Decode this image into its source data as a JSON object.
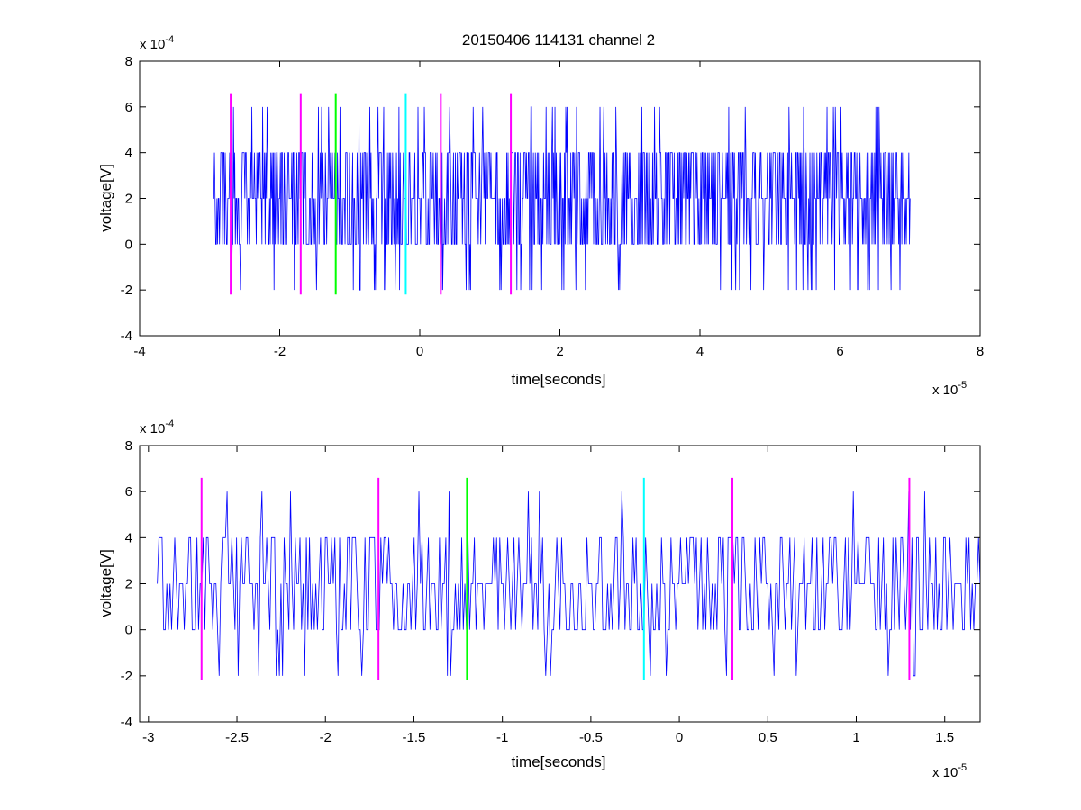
{
  "figure": {
    "title": "20150406 114131 channel 2"
  },
  "chart_data": [
    {
      "type": "line",
      "title": "20150406 114131 channel 2",
      "xlabel": "time[seconds]",
      "ylabel": "voltage[V]",
      "x_multiplier": "x 10",
      "x_exponent": "-5",
      "y_multiplier": "x 10",
      "y_exponent": "-4",
      "xlim": [
        -4,
        8
      ],
      "ylim": [
        -4,
        8
      ],
      "xticks": [
        "-4",
        "-2",
        "0",
        "2",
        "4",
        "6",
        "8"
      ],
      "xtick_values": [
        -4,
        -2,
        0,
        2,
        4,
        6,
        8
      ],
      "yticks": [
        "-4",
        "-2",
        "0",
        "2",
        "4",
        "6",
        "8"
      ],
      "ytick_values": [
        -4,
        -2,
        0,
        2,
        4,
        6,
        8
      ],
      "grid": false,
      "signal": {
        "color": "#0000ff",
        "x_start": -2.95,
        "x_end": 7.0,
        "levels": [
          -2,
          0,
          2,
          4,
          6
        ],
        "baseline": 2,
        "seed": 11,
        "samples": 1100
      },
      "markers": [
        {
          "x": -2.7,
          "color": "#ff00ff",
          "y_min": -2.2,
          "y_max": 6.6
        },
        {
          "x": -1.7,
          "color": "#ff00ff",
          "y_min": -2.2,
          "y_max": 6.6
        },
        {
          "x": -1.2,
          "color": "#00ff00",
          "y_min": -2.2,
          "y_max": 6.6
        },
        {
          "x": -0.2,
          "color": "#00ffff",
          "y_min": -2.2,
          "y_max": 6.6
        },
        {
          "x": 0.3,
          "color": "#ff00ff",
          "y_min": -2.2,
          "y_max": 6.6
        },
        {
          "x": 1.3,
          "color": "#ff00ff",
          "y_min": -2.2,
          "y_max": 6.6
        }
      ]
    },
    {
      "type": "line",
      "title": "",
      "xlabel": "time[seconds]",
      "ylabel": "voltage[V]",
      "x_multiplier": "x 10",
      "x_exponent": "-5",
      "y_multiplier": "x 10",
      "y_exponent": "-4",
      "xlim": [
        -3.05,
        1.7
      ],
      "ylim": [
        -4,
        8
      ],
      "xticks": [
        "-3",
        "-2.5",
        "-2",
        "-1.5",
        "-1",
        "-0.5",
        "0",
        "0.5",
        "1",
        "1.5"
      ],
      "xtick_values": [
        -3,
        -2.5,
        -2,
        -1.5,
        -1,
        -0.5,
        0,
        0.5,
        1,
        1.5
      ],
      "yticks": [
        "-4",
        "-2",
        "0",
        "2",
        "4",
        "6",
        "8"
      ],
      "ytick_values": [
        -4,
        -2,
        0,
        2,
        4,
        6,
        8
      ],
      "grid": false,
      "signal": {
        "color": "#0000ff",
        "x_start": -2.95,
        "x_end": 1.7,
        "levels": [
          -2,
          0,
          2,
          4,
          6
        ],
        "baseline": 2,
        "seed": 23,
        "samples": 520
      },
      "markers": [
        {
          "x": -2.7,
          "color": "#ff00ff",
          "y_min": -2.2,
          "y_max": 6.6
        },
        {
          "x": -1.7,
          "color": "#ff00ff",
          "y_min": -2.2,
          "y_max": 6.6
        },
        {
          "x": -1.2,
          "color": "#00ff00",
          "y_min": -2.2,
          "y_max": 6.6
        },
        {
          "x": -0.2,
          "color": "#00ffff",
          "y_min": -2.2,
          "y_max": 6.6
        },
        {
          "x": 0.3,
          "color": "#ff00ff",
          "y_min": -2.2,
          "y_max": 6.6
        },
        {
          "x": 1.3,
          "color": "#ff00ff",
          "y_min": -2.2,
          "y_max": 6.6
        }
      ]
    }
  ]
}
